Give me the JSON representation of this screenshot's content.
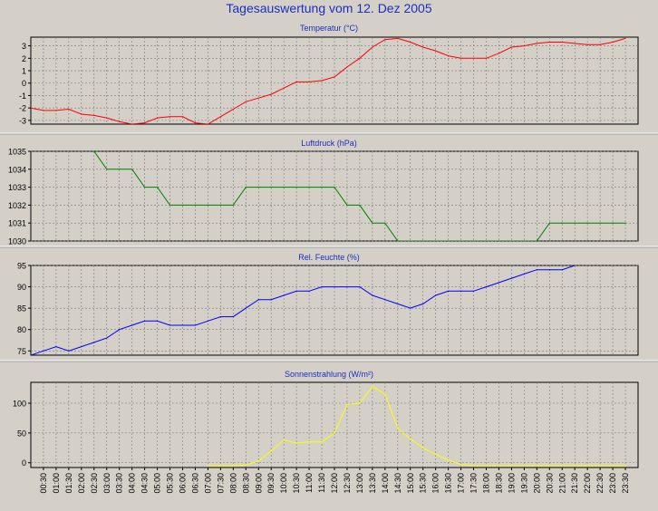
{
  "title": "Tagesauswertung vom 12. Dez 2005",
  "x_ticks": [
    "00:30",
    "01:00",
    "01:30",
    "02:00",
    "02:30",
    "03:00",
    "03:30",
    "04:00",
    "04:30",
    "05:00",
    "05:30",
    "06:00",
    "06:30",
    "07:00",
    "07:30",
    "08:00",
    "08:30",
    "09:00",
    "09:30",
    "10:00",
    "10:30",
    "11:00",
    "11:30",
    "12:00",
    "12:30",
    "13:00",
    "13:30",
    "14:00",
    "14:30",
    "15:00",
    "15:30",
    "16:00",
    "16:30",
    "17:00",
    "17:30",
    "18:00",
    "18:30",
    "19:00",
    "19:30",
    "20:00",
    "20:30",
    "21:00",
    "21:30",
    "22:00",
    "22:30",
    "23:00",
    "23:30"
  ],
  "chart_data": [
    {
      "type": "line",
      "title": "Temperatur (°C)",
      "color": "#ff0000",
      "ylim": [
        -3.3,
        3.7
      ],
      "yticks": [
        -3,
        -2,
        -1,
        0,
        1,
        2,
        3
      ],
      "grid": true,
      "x": [
        0.0,
        0.5,
        1.0,
        1.5,
        2.0,
        2.5,
        3.0,
        3.5,
        4.0,
        4.5,
        5.0,
        5.5,
        6.0,
        6.5,
        7.0,
        7.5,
        8.0,
        8.5,
        9.0,
        9.5,
        10.0,
        10.5,
        11.0,
        11.5,
        12.0,
        12.5,
        13.0,
        13.5,
        14.0,
        14.5,
        15.0,
        15.5,
        16.0,
        16.5,
        17.0,
        17.5,
        18.0,
        18.5,
        19.0,
        19.5,
        20.0,
        20.5,
        21.0,
        21.5,
        22.0,
        22.5,
        23.0,
        23.5
      ],
      "values": [
        -2.0,
        -2.2,
        -2.2,
        -2.1,
        -2.5,
        -2.6,
        -2.8,
        -3.1,
        -3.3,
        -3.2,
        -2.8,
        -2.7,
        -2.7,
        -3.2,
        -3.3,
        -2.7,
        -2.1,
        -1.5,
        -1.2,
        -0.9,
        -0.4,
        0.1,
        0.1,
        0.2,
        0.5,
        1.3,
        2.0,
        2.9,
        3.5,
        3.6,
        3.3,
        2.9,
        2.6,
        2.2,
        2.0,
        2.0,
        2.0,
        2.4,
        2.9,
        3.0,
        3.2,
        3.3,
        3.3,
        3.2,
        3.1,
        3.1,
        3.3,
        3.6
      ]
    },
    {
      "type": "line",
      "title": "Luftdruck (hPa)",
      "color": "#008000",
      "ylim": [
        1030,
        1035
      ],
      "yticks": [
        1030,
        1031,
        1032,
        1033,
        1034,
        1035
      ],
      "grid": true,
      "x": [
        2.5,
        3.0,
        3.5,
        4.0,
        4.5,
        5.0,
        5.5,
        6.0,
        6.5,
        7.0,
        7.5,
        8.0,
        8.5,
        9.0,
        9.5,
        10.0,
        10.5,
        11.0,
        11.5,
        12.0,
        12.5,
        13.0,
        13.5,
        14.0,
        14.5,
        20.0,
        20.5,
        21.0,
        21.5,
        22.0,
        22.5,
        23.0,
        23.5
      ],
      "values": [
        1035,
        1034,
        1034,
        1034,
        1033,
        1033,
        1032,
        1032,
        1032,
        1032,
        1032,
        1032,
        1033,
        1033,
        1033,
        1033,
        1033,
        1033,
        1033,
        1033,
        1032,
        1032,
        1031,
        1031,
        1030,
        1030,
        1031,
        1031,
        1031,
        1031,
        1031,
        1031,
        1031
      ]
    },
    {
      "type": "line",
      "title": "Rel. Feuchte (%)",
      "color": "#0000ff",
      "ylim": [
        74,
        95
      ],
      "yticks": [
        75,
        80,
        85,
        90,
        95
      ],
      "grid": true,
      "x": [
        0.0,
        0.5,
        1.0,
        1.5,
        2.0,
        2.5,
        3.0,
        3.5,
        4.0,
        4.5,
        5.0,
        5.5,
        6.0,
        6.5,
        7.0,
        7.5,
        8.0,
        8.5,
        9.0,
        9.5,
        10.0,
        10.5,
        11.0,
        11.5,
        12.0,
        12.5,
        13.0,
        13.5,
        14.0,
        14.5,
        15.0,
        15.5,
        16.0,
        16.5,
        17.0,
        17.5,
        18.0,
        18.5,
        19.0,
        19.5,
        20.0,
        20.5,
        21.0,
        21.5
      ],
      "values": [
        74,
        75,
        76,
        75,
        76,
        77,
        78,
        80,
        81,
        82,
        82,
        81,
        81,
        81,
        82,
        83,
        83,
        85,
        87,
        87,
        88,
        89,
        89,
        90,
        90,
        90,
        90,
        88,
        87,
        86,
        85,
        86,
        88,
        89,
        89,
        89,
        90,
        91,
        92,
        93,
        94,
        94,
        94,
        95
      ]
    },
    {
      "type": "line",
      "title": "Sonnenstrahlung (W/m²)",
      "color": "#ffff00",
      "ylim": [
        -8,
        135
      ],
      "yticks": [
        0,
        50,
        100
      ],
      "grid": true,
      "x": [
        7.0,
        7.5,
        8.0,
        8.5,
        9.0,
        9.5,
        10.0,
        10.5,
        11.0,
        11.5,
        12.0,
        12.5,
        13.0,
        13.5,
        14.0,
        14.5,
        15.0,
        15.5,
        16.0,
        16.5,
        17.0,
        17.5,
        18.0,
        18.5,
        19.0,
        19.5,
        20.0,
        20.5,
        21.0,
        21.5,
        22.0,
        22.5,
        23.0,
        23.5
      ],
      "values": [
        -5,
        -5,
        -5,
        -4,
        3,
        20,
        38,
        33,
        35,
        35,
        50,
        98,
        100,
        128,
        115,
        58,
        40,
        25,
        14,
        5,
        -3,
        -5,
        -5,
        -5,
        -5,
        -5,
        -5,
        -5,
        -5,
        -5,
        -5,
        -5,
        -5,
        -5
      ]
    }
  ]
}
